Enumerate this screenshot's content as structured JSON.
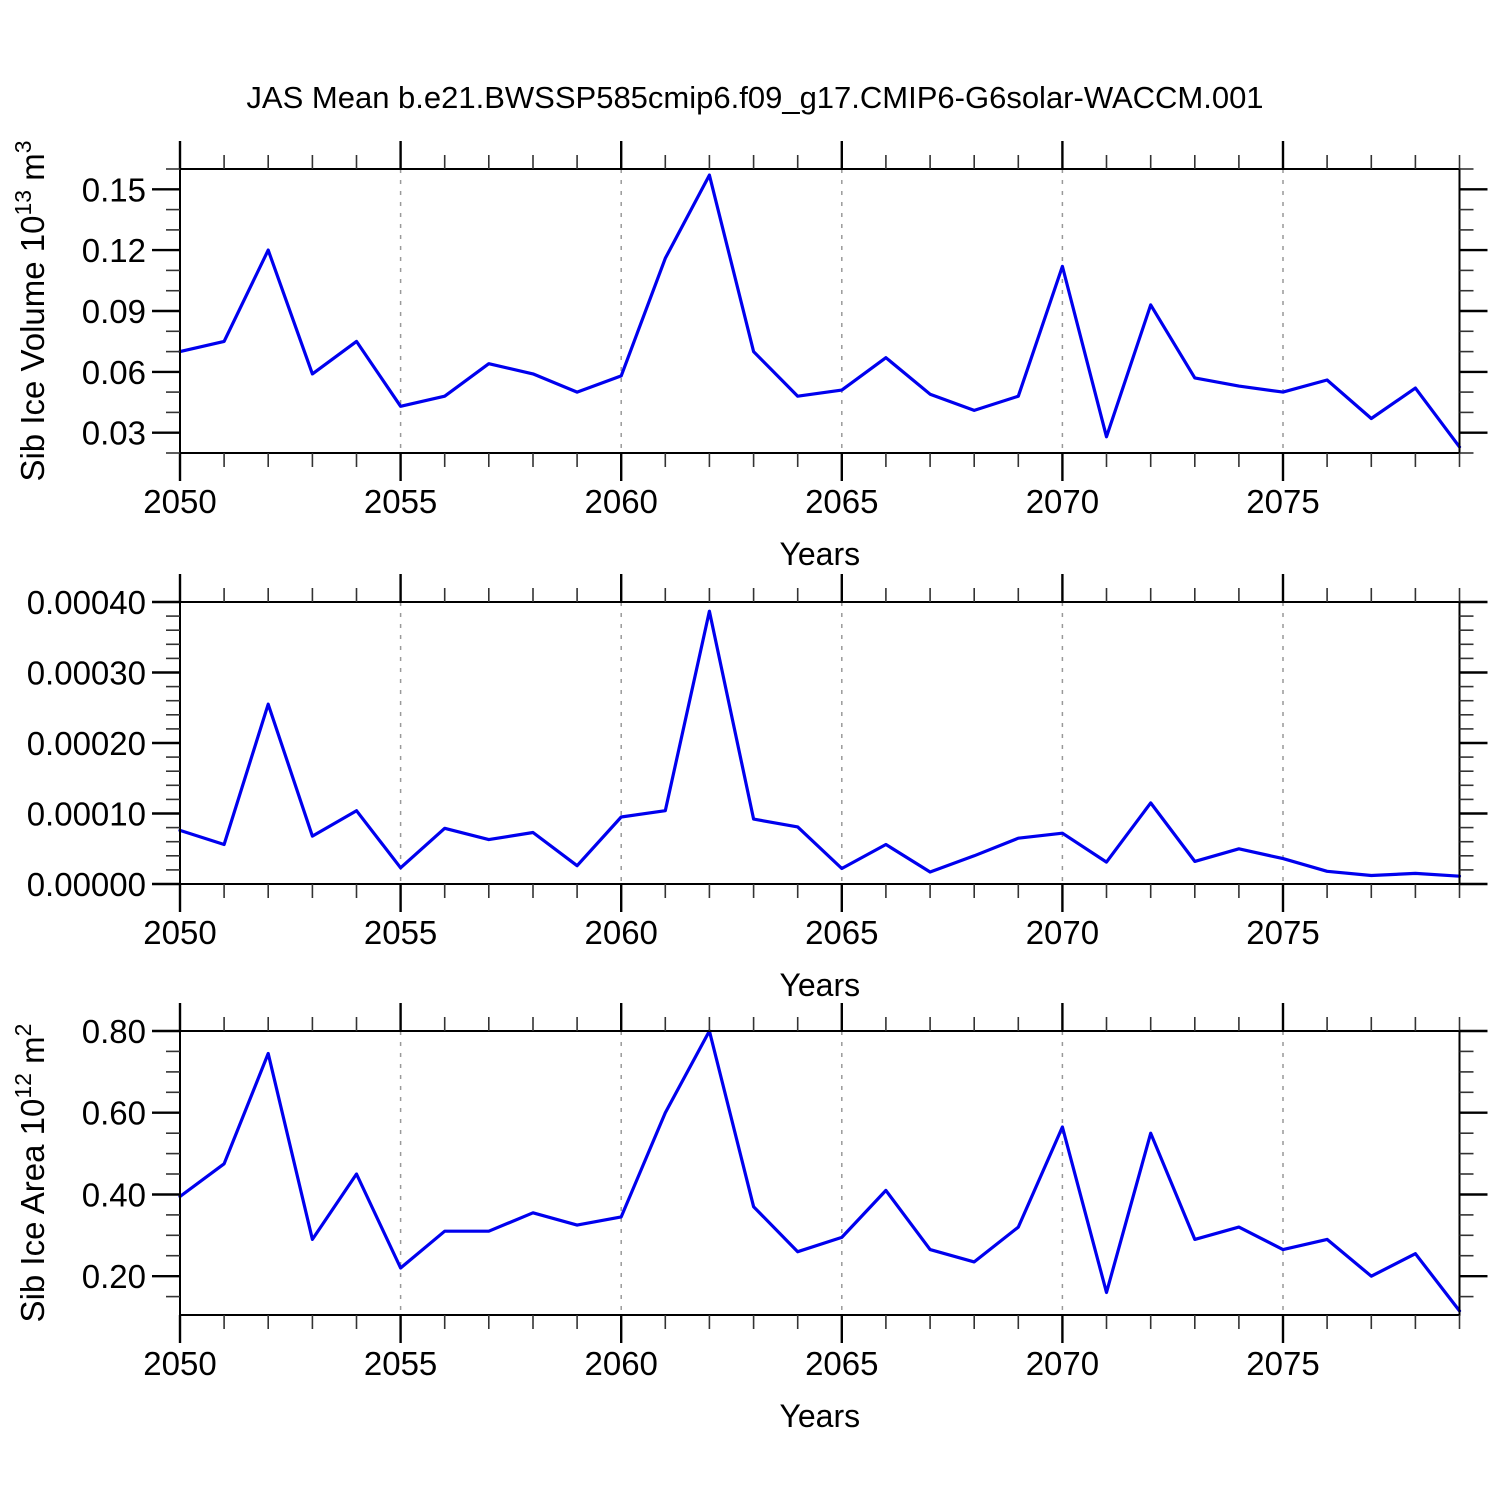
{
  "title": "JAS Mean b.e21.BWSSP585cmip6.f09_g17.CMIP6-G6solar-WACCM.001",
  "colors": {
    "line": "#0000ee",
    "grid": "#999999",
    "frame": "#000000",
    "text": "#000000"
  },
  "chart_data": [
    {
      "type": "line",
      "name": "sib-ice-volume",
      "ylabel": "Sib Ice Volume 10^13 m^3",
      "ylabel_segments": [
        {
          "t": "Sib Ice Volume 10"
        },
        {
          "t": "13",
          "sup": true
        },
        {
          "t": " m"
        },
        {
          "t": "3",
          "sup": true
        }
      ],
      "xlabel": "Years",
      "x": [
        2050,
        2051,
        2052,
        2053,
        2054,
        2055,
        2056,
        2057,
        2058,
        2059,
        2060,
        2061,
        2062,
        2063,
        2064,
        2065,
        2066,
        2067,
        2068,
        2069,
        2070,
        2071,
        2072,
        2073,
        2074,
        2075,
        2076,
        2077,
        2078,
        2079
      ],
      "values": [
        0.07,
        0.075,
        0.12,
        0.059,
        0.075,
        0.043,
        0.048,
        0.064,
        0.059,
        0.05,
        0.058,
        0.116,
        0.157,
        0.07,
        0.048,
        0.051,
        0.067,
        0.049,
        0.041,
        0.048,
        0.112,
        0.028,
        0.093,
        0.057,
        0.053,
        0.05,
        0.056,
        0.037,
        0.052,
        0.023
      ],
      "xlim": [
        2050,
        2079
      ],
      "ylim": [
        0.02,
        0.16
      ],
      "xticks_major": [
        2050,
        2055,
        2060,
        2065,
        2070,
        2075
      ],
      "xtick_labels": [
        "2050",
        "2055",
        "2060",
        "2065",
        "2070",
        "2075"
      ],
      "grid_x": [
        2055,
        2060,
        2065,
        2070,
        2075
      ],
      "yticks_major": [
        0.03,
        0.06,
        0.09,
        0.12,
        0.15
      ],
      "ytick_labels": [
        "0.03",
        "0.06",
        "0.09",
        "0.12",
        "0.15"
      ],
      "yticks_minor": [
        0.02,
        0.04,
        0.05,
        0.07,
        0.08,
        0.1,
        0.11,
        0.13,
        0.14,
        0.16
      ]
    },
    {
      "type": "line",
      "name": "sib-ice-middle-series",
      "ylabel": "",
      "ylabel_segments": [],
      "xlabel": "Years",
      "x": [
        2050,
        2051,
        2052,
        2053,
        2054,
        2055,
        2056,
        2057,
        2058,
        2059,
        2060,
        2061,
        2062,
        2063,
        2064,
        2065,
        2066,
        2067,
        2068,
        2069,
        2070,
        2071,
        2072,
        2073,
        2074,
        2075,
        2076,
        2077,
        2078,
        2079
      ],
      "values": [
        7.6e-05,
        5.6e-05,
        0.000255,
        6.8e-05,
        0.000104,
        2.3e-05,
        7.9e-05,
        6.3e-05,
        7.3e-05,
        2.6e-05,
        9.5e-05,
        0.000104,
        0.000387,
        9.2e-05,
        8.1e-05,
        2.2e-05,
        5.6e-05,
        1.7e-05,
        4e-05,
        6.5e-05,
        7.2e-05,
        3.1e-05,
        0.000115,
        3.2e-05,
        5e-05,
        3.6e-05,
        1.8e-05,
        1.2e-05,
        1.5e-05,
        1.1e-05
      ],
      "xlim": [
        2050,
        2079
      ],
      "ylim": [
        0,
        0.0004
      ],
      "xticks_major": [
        2050,
        2055,
        2060,
        2065,
        2070,
        2075
      ],
      "xtick_labels": [
        "2050",
        "2055",
        "2060",
        "2065",
        "2070",
        "2075"
      ],
      "grid_x": [
        2055,
        2060,
        2065,
        2070,
        2075
      ],
      "yticks_major": [
        0,
        0.0001,
        0.0002,
        0.0003,
        0.0004
      ],
      "ytick_labels": [
        "0.00000",
        "0.00010",
        "0.00020",
        "0.00030",
        "0.00040"
      ],
      "yticks_minor": [
        2e-05,
        4e-05,
        6e-05,
        8e-05,
        0.00012,
        0.00014,
        0.00016,
        0.00018,
        0.00022,
        0.00024,
        0.00026,
        0.00028,
        0.00032,
        0.00034,
        0.00036,
        0.00038
      ]
    },
    {
      "type": "line",
      "name": "sib-ice-area",
      "ylabel": "Sib Ice Area 10^12 m^2",
      "ylabel_segments": [
        {
          "t": "Sib Ice Area 10"
        },
        {
          "t": "12",
          "sup": true
        },
        {
          "t": " m"
        },
        {
          "t": "2",
          "sup": true
        }
      ],
      "xlabel": "Years",
      "x": [
        2050,
        2051,
        2052,
        2053,
        2054,
        2055,
        2056,
        2057,
        2058,
        2059,
        2060,
        2061,
        2062,
        2063,
        2064,
        2065,
        2066,
        2067,
        2068,
        2069,
        2070,
        2071,
        2072,
        2073,
        2074,
        2075,
        2076,
        2077,
        2078,
        2079
      ],
      "values": [
        0.395,
        0.475,
        0.745,
        0.29,
        0.45,
        0.22,
        0.31,
        0.31,
        0.355,
        0.325,
        0.345,
        0.6,
        0.8,
        0.37,
        0.26,
        0.295,
        0.41,
        0.265,
        0.235,
        0.32,
        0.565,
        0.16,
        0.55,
        0.29,
        0.32,
        0.265,
        0.29,
        0.2,
        0.255,
        0.115
      ],
      "xlim": [
        2050,
        2079
      ],
      "ylim": [
        0.105,
        0.8
      ],
      "xticks_major": [
        2050,
        2055,
        2060,
        2065,
        2070,
        2075
      ],
      "xtick_labels": [
        "2050",
        "2055",
        "2060",
        "2065",
        "2070",
        "2075"
      ],
      "grid_x": [
        2055,
        2060,
        2065,
        2070,
        2075
      ],
      "yticks_major": [
        0.2,
        0.4,
        0.6,
        0.8
      ],
      "ytick_labels": [
        "0.20",
        "0.40",
        "0.60",
        "0.80"
      ],
      "yticks_minor": [
        0.15,
        0.25,
        0.3,
        0.35,
        0.45,
        0.5,
        0.55,
        0.65,
        0.7,
        0.75
      ]
    }
  ]
}
